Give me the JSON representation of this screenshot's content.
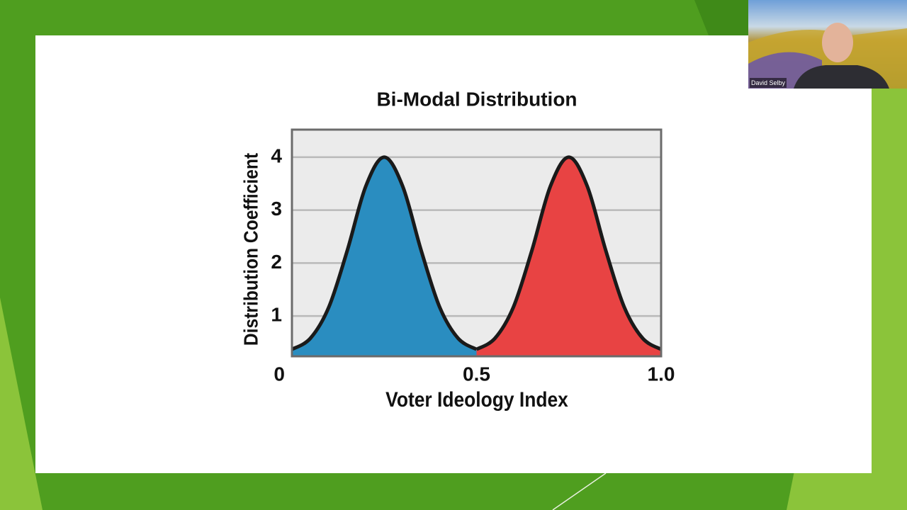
{
  "chart_data": {
    "type": "area",
    "title": "Bi-Modal Distribution",
    "xlabel": "Voter Ideology Index",
    "ylabel": "Distribution Coefficient",
    "x": [
      0,
      0.05,
      0.1,
      0.15,
      0.2,
      0.25,
      0.3,
      0.35,
      0.4,
      0.45,
      0.5,
      0.55,
      0.6,
      0.65,
      0.7,
      0.75,
      0.8,
      0.85,
      0.9,
      0.95,
      1
    ],
    "series": [
      {
        "color": "#2a8dc0",
        "values": [
          0.37,
          0.58,
          1.17,
          2.24,
          3.45,
          4,
          3.45,
          2.24,
          1.17,
          0.58,
          0.37,
          null,
          null,
          null,
          null,
          null,
          null,
          null,
          null,
          null,
          null
        ]
      },
      {
        "color": "#e84343",
        "values": [
          null,
          null,
          null,
          null,
          null,
          null,
          null,
          null,
          null,
          null,
          0.37,
          0.58,
          1.17,
          2.24,
          3.45,
          4,
          3.45,
          2.24,
          1.17,
          0.58,
          0.37
        ]
      }
    ],
    "xlim": [
      0,
      1
    ],
    "xticks": [
      0,
      0.5,
      {
        "value": 1,
        "label": "1.0"
      }
    ],
    "ylim": [
      0.24,
      4.52
    ],
    "yticks": [
      1,
      2,
      3,
      4
    ],
    "grid": true
  },
  "video": {
    "participant_name": "David Selby"
  }
}
